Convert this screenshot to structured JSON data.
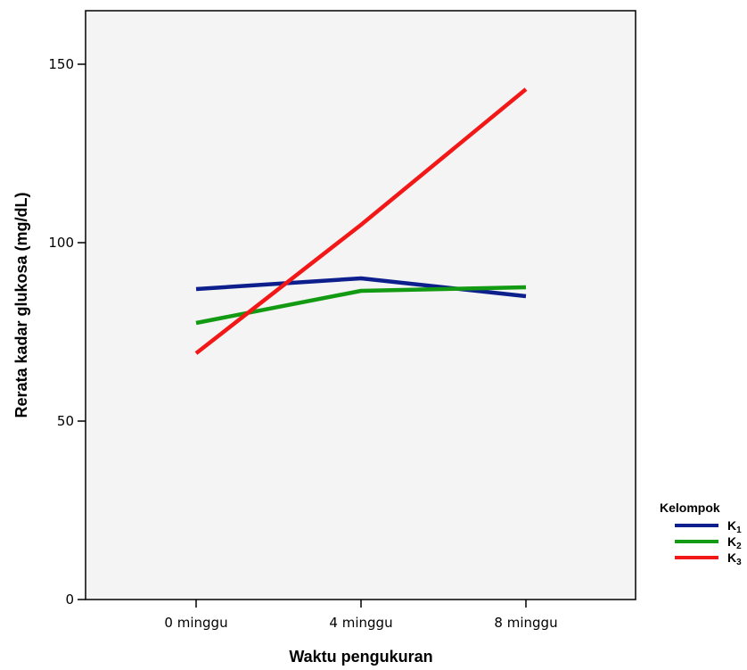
{
  "chart_data": {
    "type": "line",
    "title": "",
    "xlabel": "Waktu pengukuran",
    "ylabel": "Rerata kadar glukosa  (mg/dL)",
    "categories": [
      "0 minggu",
      "4 minggu",
      "8 minggu"
    ],
    "ylim": [
      0,
      165
    ],
    "yticks": [
      0,
      50,
      100,
      150
    ],
    "grid": false,
    "plot_background": "#f4f4f4",
    "legend": {
      "title": "Kelompok",
      "placement": "right-bottom",
      "entries": [
        {
          "base": "K",
          "sub": "1"
        },
        {
          "base": "K",
          "sub": "2"
        },
        {
          "base": "K",
          "sub": "3"
        }
      ]
    },
    "series": [
      {
        "name": "K1",
        "color": "#0d1f8c",
        "values": [
          87,
          90,
          85
        ]
      },
      {
        "name": "K2",
        "color": "#129a12",
        "values": [
          77.5,
          86.5,
          87.5
        ]
      },
      {
        "name": "K3",
        "color": "#f21818",
        "values": [
          69,
          105,
          143
        ]
      }
    ]
  }
}
